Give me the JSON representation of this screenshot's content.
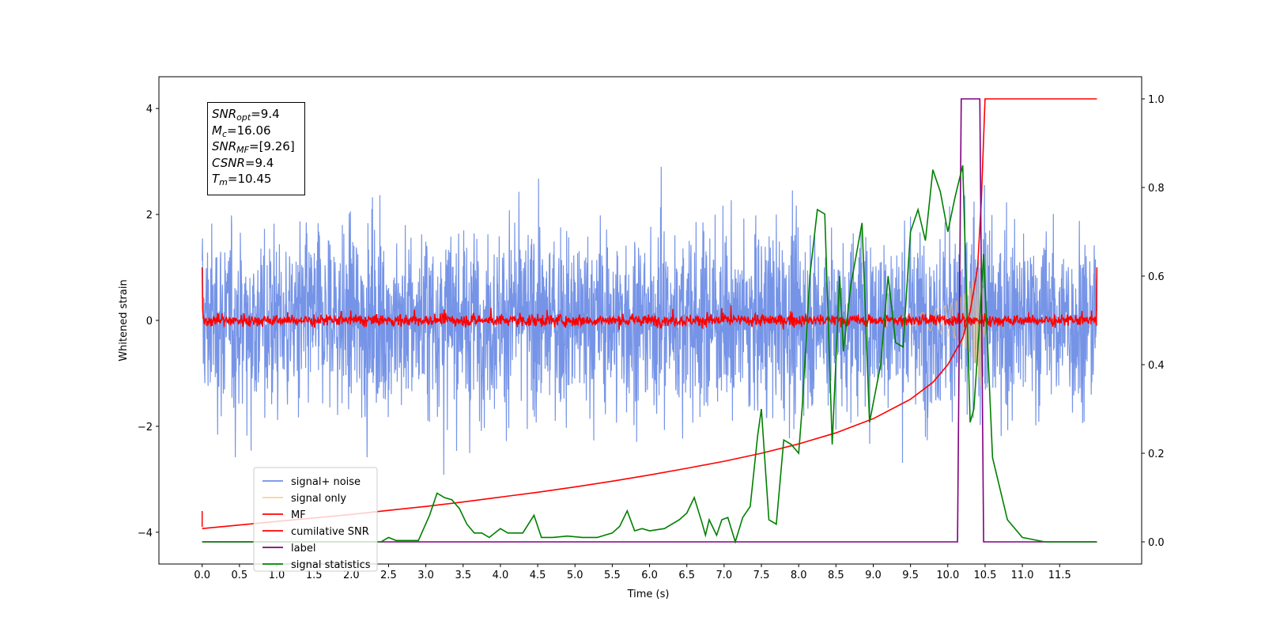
{
  "info_box": {
    "lines": [
      {
        "symbol": "SNR",
        "sub": "opt",
        "value": "=9.4"
      },
      {
        "symbol": "M",
        "sub": "c",
        "value": "=16.06"
      },
      {
        "symbol": "SNR",
        "sub": "MF",
        "value": "=[9.26]"
      },
      {
        "symbol": "CSNR",
        "sub": "",
        "value": "=9.4"
      },
      {
        "symbol": "T",
        "sub": "m",
        "value": "=10.45"
      }
    ]
  },
  "chart_data": {
    "type": "line",
    "xlabel": "Time (s)",
    "ylabel": "Whitened strain",
    "y2label": "",
    "xlim": [
      -0.58,
      12.6
    ],
    "ylim": [
      -4.6,
      4.6
    ],
    "y2lim": [
      -0.05,
      1.05
    ],
    "x_ticks": [
      "0.0",
      "0.5",
      "1.0",
      "1.5",
      "2.0",
      "2.5",
      "3.0",
      "3.5",
      "4.0",
      "4.5",
      "5.0",
      "5.5",
      "6.0",
      "6.5",
      "7.0",
      "7.5",
      "8.0",
      "8.5",
      "9.0",
      "9.5",
      "10.0",
      "10.5",
      "11.0",
      "11.5"
    ],
    "y_ticks": [
      "−4",
      "−2",
      "0",
      "2",
      "4"
    ],
    "y2_ticks": [
      "0.0",
      "0.2",
      "0.4",
      "0.6",
      "0.8",
      "1.0"
    ],
    "legend_position": "lower-left",
    "series": [
      {
        "name": "signal+ noise",
        "color": "#6f8ee6",
        "axis": "left",
        "noise_amplitude": 1.6,
        "range": [
          0.0,
          12.0
        ]
      },
      {
        "name": "signal only",
        "color": "#f5c77a",
        "axis": "left",
        "envelope": [
          [
            9.3,
            0.05
          ],
          [
            9.6,
            0.12
          ],
          [
            9.9,
            0.25
          ],
          [
            10.1,
            0.35
          ],
          [
            10.3,
            0.6
          ],
          [
            10.4,
            1.0
          ],
          [
            10.45,
            1.3
          ],
          [
            10.5,
            0.0
          ]
        ]
      },
      {
        "name": "MF",
        "color": "#ff0000",
        "axis": "left",
        "noise_amplitude": 0.08,
        "range": [
          0.0,
          12.0
        ],
        "edge_values": [
          1.0,
          -3.9,
          1.0,
          -0.1
        ]
      },
      {
        "name": "cumilative SNR",
        "color": "#ff0000",
        "axis": "right",
        "x": [
          0.0,
          0.5,
          1.0,
          1.5,
          2.0,
          2.5,
          3.0,
          3.5,
          4.0,
          4.5,
          5.0,
          5.5,
          6.0,
          6.5,
          7.0,
          7.5,
          8.0,
          8.5,
          9.0,
          9.5,
          9.8,
          10.0,
          10.2,
          10.3,
          10.4,
          10.45,
          10.5,
          12.0
        ],
        "y": [
          0.03,
          0.038,
          0.046,
          0.054,
          0.062,
          0.071,
          0.08,
          0.09,
          0.101,
          0.112,
          0.124,
          0.137,
          0.151,
          0.166,
          0.182,
          0.2,
          0.221,
          0.246,
          0.278,
          0.322,
          0.36,
          0.4,
          0.46,
          0.52,
          0.62,
          0.77,
          1.0,
          1.0
        ]
      },
      {
        "name": "label",
        "color": "#800080",
        "axis": "right",
        "x": [
          0.0,
          10.13,
          10.18,
          10.43,
          10.48,
          12.0
        ],
        "y": [
          0.0,
          0.0,
          1.0,
          1.0,
          0.0,
          0.0
        ]
      },
      {
        "name": "signal statistics",
        "color": "#008000",
        "axis": "right",
        "x": [
          0.0,
          0.3,
          0.6,
          0.9,
          1.2,
          1.5,
          1.8,
          2.1,
          2.4,
          2.5,
          2.6,
          2.9,
          3.05,
          3.15,
          3.25,
          3.35,
          3.45,
          3.55,
          3.65,
          3.75,
          3.85,
          4.0,
          4.1,
          4.2,
          4.3,
          4.45,
          4.55,
          4.7,
          4.9,
          5.1,
          5.3,
          5.5,
          5.6,
          5.7,
          5.8,
          5.9,
          6.0,
          6.2,
          6.4,
          6.5,
          6.6,
          6.7,
          6.75,
          6.8,
          6.9,
          6.97,
          7.05,
          7.15,
          7.25,
          7.35,
          7.45,
          7.5,
          7.6,
          7.7,
          7.8,
          7.9,
          8.0,
          8.05,
          8.15,
          8.25,
          8.35,
          8.45,
          8.55,
          8.6,
          8.7,
          8.85,
          8.95,
          9.1,
          9.2,
          9.3,
          9.4,
          9.5,
          9.6,
          9.7,
          9.8,
          9.9,
          10.0,
          10.1,
          10.2,
          10.3,
          10.35,
          10.42,
          10.48,
          10.6,
          10.8,
          11.0,
          11.3,
          12.0
        ],
        "y": [
          0.0,
          0.0,
          0.0,
          0.0,
          0.0,
          0.0,
          0.0,
          0.0,
          0.0,
          0.01,
          0.003,
          0.003,
          0.06,
          0.11,
          0.1,
          0.095,
          0.075,
          0.04,
          0.02,
          0.02,
          0.01,
          0.03,
          0.02,
          0.02,
          0.02,
          0.06,
          0.01,
          0.01,
          0.013,
          0.01,
          0.01,
          0.02,
          0.035,
          0.07,
          0.025,
          0.03,
          0.025,
          0.03,
          0.05,
          0.065,
          0.1,
          0.045,
          0.015,
          0.05,
          0.015,
          0.05,
          0.055,
          0.0,
          0.055,
          0.08,
          0.24,
          0.3,
          0.05,
          0.04,
          0.23,
          0.22,
          0.2,
          0.31,
          0.6,
          0.75,
          0.74,
          0.22,
          0.6,
          0.43,
          0.58,
          0.72,
          0.27,
          0.4,
          0.6,
          0.45,
          0.44,
          0.7,
          0.75,
          0.68,
          0.84,
          0.79,
          0.7,
          0.78,
          0.85,
          0.27,
          0.3,
          0.48,
          0.65,
          0.19,
          0.05,
          0.01,
          0.0,
          0.0
        ]
      }
    ]
  }
}
